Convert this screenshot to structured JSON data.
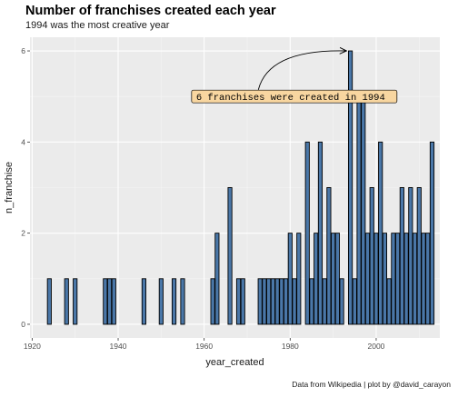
{
  "chart_data": {
    "type": "bar",
    "title": "Number of franchises created each year",
    "subtitle": "1994 was the most creative year",
    "xlabel": "year_created",
    "ylabel": "n_franchise",
    "caption": "Data from Wikipedia | plot by @david_carayon",
    "xlim": [
      1919.5,
      2014.8
    ],
    "ylim": [
      -0.3,
      6.3
    ],
    "x_ticks": [
      1920,
      1940,
      1960,
      1980,
      2000
    ],
    "y_ticks": [
      0,
      2,
      4,
      6
    ],
    "grid": true,
    "legend": "none",
    "colors": {
      "panel_background": "#ebebeb",
      "grid_major": "#ffffff",
      "grid_minor": "#f5f5f5",
      "bar_fill": "#4a77a8",
      "bar_stroke": "#000000",
      "annotation_fill": "#f8d6a0"
    },
    "x": [
      1924,
      1928,
      1930,
      1937,
      1938,
      1939,
      1946,
      1950,
      1953,
      1955,
      1962,
      1963,
      1966,
      1968,
      1969,
      1973,
      1974,
      1975,
      1976,
      1977,
      1978,
      1979,
      1980,
      1981,
      1982,
      1984,
      1985,
      1986,
      1987,
      1988,
      1989,
      1990,
      1991,
      1992,
      1994,
      1995,
      1996,
      1997,
      1998,
      1999,
      2000,
      2001,
      2002,
      2003,
      2004,
      2005,
      2006,
      2007,
      2008,
      2009,
      2010,
      2011,
      2012,
      2013
    ],
    "values": [
      1,
      1,
      1,
      1,
      1,
      1,
      1,
      1,
      1,
      1,
      1,
      2,
      3,
      1,
      1,
      1,
      1,
      1,
      1,
      1,
      1,
      1,
      2,
      1,
      2,
      4,
      1,
      2,
      4,
      1,
      3,
      2,
      2,
      1,
      6,
      1,
      5,
      5,
      2,
      3,
      2,
      4,
      2,
      1,
      2,
      2,
      3,
      2,
      3,
      2,
      3,
      2,
      2,
      4
    ],
    "annotation": {
      "text": "6 franchises were created in 1994",
      "label_x": 1957.5,
      "label_y": 5.0,
      "arrow_from_x": 1972.6,
      "arrow_from_y": 5.15,
      "arrow_to_x": 1993.0,
      "arrow_to_y": 6.0
    }
  }
}
